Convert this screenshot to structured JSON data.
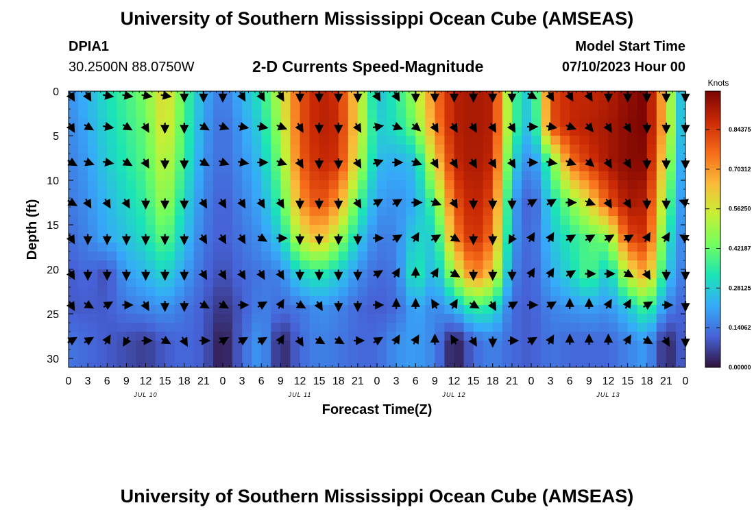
{
  "header": {
    "title": "University of Southern Mississippi Ocean Cube (AMSEAS)",
    "station_id": "DPIA1",
    "station_coords": "30.2500N  88.0750W",
    "product": "2-D Currents Speed-Magnitude",
    "model_start_label": "Model Start Time",
    "model_start_value": "07/10/2023 Hour 00"
  },
  "chart_data": {
    "type": "heatmap",
    "title": "2-D Currents Speed-Magnitude",
    "xlabel": "Forecast Time(Z)",
    "ylabel": "Depth (ft)",
    "x_hours": [
      0,
      3,
      6,
      9,
      12,
      15,
      18,
      21,
      24,
      27,
      30,
      33,
      36,
      39,
      42,
      45,
      48,
      51,
      54,
      57,
      60,
      63,
      66,
      69,
      72,
      75,
      78,
      81,
      84,
      87,
      90,
      93,
      96
    ],
    "x_tick_labels": [
      "0",
      "3",
      "6",
      "9",
      "12",
      "15",
      "18",
      "21",
      "0",
      "3",
      "6",
      "9",
      "12",
      "15",
      "18",
      "21",
      "0",
      "3",
      "6",
      "9",
      "12",
      "15",
      "18",
      "21",
      "0",
      "3",
      "6",
      "9",
      "12",
      "15",
      "18",
      "21",
      "0"
    ],
    "day_labels": [
      {
        "hour": 12,
        "label": "JUL 10"
      },
      {
        "hour": 36,
        "label": "JUL 11"
      },
      {
        "hour": 60,
        "label": "JUL 12"
      },
      {
        "hour": 84,
        "label": "JUL 13"
      }
    ],
    "xlim": [
      0,
      96
    ],
    "ylim": [
      0,
      31
    ],
    "y_ticks": [
      0,
      5,
      10,
      15,
      20,
      25,
      30
    ],
    "depths_ft": [
      0,
      4,
      8,
      12.5,
      16.5,
      20.5,
      24.5,
      28
    ],
    "speed_knots": [
      [
        0.18,
        0.24,
        0.32,
        0.38,
        0.45,
        0.62,
        0.4,
        0.22,
        0.14,
        0.24,
        0.34,
        0.55,
        0.8,
        0.9,
        0.86,
        0.6,
        0.25,
        0.35,
        0.5,
        0.75,
        0.9,
        0.92,
        0.9,
        0.4,
        0.25,
        0.82,
        0.88,
        0.88,
        0.9,
        0.95,
        0.98,
        0.6,
        0.15
      ],
      [
        0.16,
        0.22,
        0.3,
        0.36,
        0.42,
        0.6,
        0.38,
        0.2,
        0.12,
        0.2,
        0.3,
        0.5,
        0.8,
        0.9,
        0.88,
        0.6,
        0.28,
        0.32,
        0.44,
        0.72,
        0.9,
        0.92,
        0.9,
        0.4,
        0.22,
        0.8,
        0.88,
        0.9,
        0.92,
        0.96,
        0.98,
        0.62,
        0.15
      ],
      [
        0.15,
        0.2,
        0.28,
        0.34,
        0.4,
        0.55,
        0.36,
        0.18,
        0.12,
        0.18,
        0.26,
        0.45,
        0.78,
        0.88,
        0.86,
        0.55,
        0.25,
        0.22,
        0.26,
        0.6,
        0.88,
        0.92,
        0.88,
        0.3,
        0.14,
        0.4,
        0.75,
        0.85,
        0.92,
        0.96,
        0.96,
        0.55,
        0.12
      ],
      [
        0.14,
        0.18,
        0.24,
        0.3,
        0.36,
        0.5,
        0.3,
        0.16,
        0.1,
        0.16,
        0.22,
        0.38,
        0.7,
        0.82,
        0.7,
        0.4,
        0.2,
        0.18,
        0.22,
        0.4,
        0.8,
        0.9,
        0.82,
        0.22,
        0.08,
        0.3,
        0.45,
        0.6,
        0.8,
        0.92,
        0.9,
        0.45,
        0.12
      ],
      [
        0.12,
        0.16,
        0.22,
        0.26,
        0.32,
        0.42,
        0.26,
        0.14,
        0.1,
        0.14,
        0.18,
        0.28,
        0.55,
        0.65,
        0.5,
        0.28,
        0.15,
        0.16,
        0.3,
        0.28,
        0.72,
        0.88,
        0.75,
        0.2,
        0.1,
        0.26,
        0.34,
        0.4,
        0.45,
        0.82,
        0.86,
        0.35,
        0.12
      ],
      [
        0.1,
        0.12,
        0.08,
        0.2,
        0.24,
        0.3,
        0.2,
        0.12,
        0.08,
        0.12,
        0.14,
        0.16,
        0.3,
        0.35,
        0.28,
        0.18,
        0.12,
        0.14,
        0.36,
        0.22,
        0.5,
        0.75,
        0.62,
        0.16,
        0.1,
        0.22,
        0.3,
        0.4,
        0.26,
        0.55,
        0.7,
        0.28,
        0.12
      ],
      [
        0.1,
        0.1,
        0.1,
        0.14,
        0.16,
        0.18,
        0.14,
        0.1,
        0.04,
        0.1,
        0.16,
        0.12,
        0.14,
        0.18,
        0.16,
        0.12,
        0.1,
        0.12,
        0.22,
        0.16,
        0.22,
        0.35,
        0.32,
        0.12,
        0.1,
        0.16,
        0.18,
        0.2,
        0.18,
        0.26,
        0.38,
        0.16,
        0.1
      ],
      [
        0.14,
        0.12,
        0.1,
        0.08,
        0.06,
        0.1,
        0.12,
        0.1,
        0.0,
        0.12,
        0.2,
        0.02,
        0.12,
        0.16,
        0.14,
        0.12,
        0.12,
        0.18,
        0.2,
        0.16,
        0.0,
        0.12,
        0.16,
        0.12,
        0.1,
        0.14,
        0.12,
        0.12,
        0.12,
        0.16,
        0.2,
        0.02,
        0.12
      ]
    ],
    "arrows": {
      "depths_ft": [
        0.5,
        4,
        8,
        12.5,
        16.5,
        20.5,
        24,
        28
      ],
      "start_hour": 0,
      "step_hours": 3,
      "directions_deg": [
        [
          150,
          150,
          100,
          100,
          100,
          100,
          180,
          180,
          180,
          150,
          150,
          150,
          180,
          180,
          180,
          180,
          150,
          150,
          180,
          180,
          180,
          180,
          180,
          180,
          120,
          150,
          150,
          150,
          180,
          180,
          180,
          180,
          180
        ],
        [
          150,
          120,
          100,
          120,
          150,
          180,
          180,
          120,
          110,
          100,
          100,
          110,
          150,
          180,
          180,
          150,
          80,
          110,
          130,
          150,
          150,
          150,
          150,
          150,
          90,
          100,
          110,
          140,
          150,
          150,
          180,
          180,
          180
        ],
        [
          120,
          110,
          100,
          120,
          150,
          180,
          180,
          120,
          110,
          100,
          90,
          110,
          150,
          180,
          180,
          150,
          70,
          90,
          110,
          150,
          150,
          150,
          150,
          150,
          90,
          100,
          110,
          130,
          150,
          150,
          180,
          180,
          180
        ],
        [
          120,
          150,
          150,
          150,
          180,
          180,
          180,
          150,
          150,
          150,
          150,
          150,
          180,
          180,
          180,
          150,
          60,
          60,
          90,
          110,
          150,
          180,
          180,
          180,
          60,
          60,
          90,
          110,
          150,
          150,
          180,
          180,
          290
        ],
        [
          150,
          180,
          180,
          180,
          180,
          180,
          180,
          150,
          150,
          150,
          120,
          90,
          180,
          180,
          180,
          180,
          90,
          60,
          30,
          60,
          120,
          180,
          180,
          210,
          30,
          30,
          60,
          60,
          60,
          60,
          30,
          30,
          300
        ],
        [
          150,
          180,
          180,
          180,
          180,
          180,
          180,
          150,
          150,
          150,
          150,
          150,
          180,
          180,
          180,
          180,
          60,
          30,
          0,
          30,
          120,
          180,
          180,
          180,
          30,
          30,
          60,
          90,
          90,
          120,
          150,
          180,
          180
        ],
        [
          150,
          120,
          60,
          90,
          150,
          180,
          180,
          120,
          120,
          90,
          60,
          30,
          120,
          150,
          180,
          180,
          90,
          0,
          0,
          330,
          30,
          120,
          150,
          60,
          90,
          60,
          0,
          0,
          30,
          30,
          60,
          90,
          180
        ],
        [
          60,
          60,
          30,
          210,
          90,
          120,
          150,
          90,
          60,
          60,
          60,
          30,
          150,
          120,
          120,
          90,
          60,
          30,
          30,
          0,
          330,
          150,
          180,
          90,
          60,
          30,
          0,
          0,
          0,
          30,
          120,
          150,
          180
        ]
      ]
    },
    "colorbar": {
      "unit_label": "Knots",
      "min": 0.0,
      "max": 0.98,
      "ticks": [
        0.0,
        0.140625,
        0.28125,
        0.421875,
        0.5625,
        0.703125,
        0.84375
      ],
      "tick_labels": [
        "0.00000",
        "0.14062",
        "0.28125",
        "0.42187",
        "0.56250",
        "0.70312",
        "0.84375"
      ],
      "colors": [
        "#30123b",
        "#4662d7",
        "#36aaf9",
        "#1ae4b6",
        "#72fe5e",
        "#c7ef34",
        "#faba39",
        "#f66b19",
        "#cb2a04",
        "#7a0403"
      ]
    }
  },
  "footer": {
    "title": "University of Southern Mississippi Ocean Cube (AMSEAS)"
  }
}
